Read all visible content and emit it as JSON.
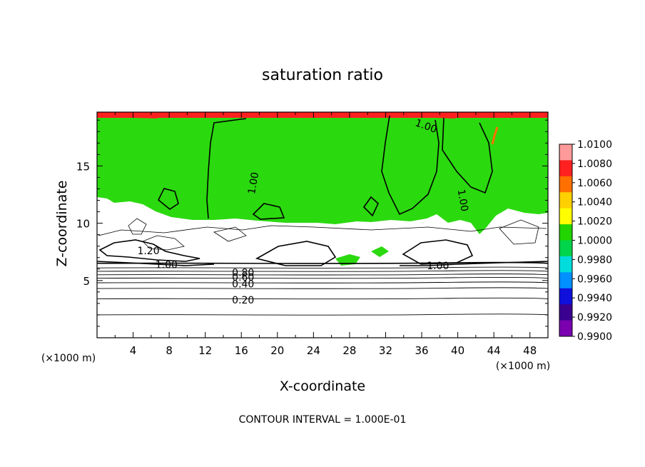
{
  "chart_data": {
    "type": "heatmap",
    "title": "saturation ratio",
    "xlabel": "X-coordinate",
    "ylabel": "Z-coordinate",
    "x_unit_left": "(×1000 m)",
    "x_unit_right": "(×1000 m)",
    "xlim": [
      0,
      50
    ],
    "ylim": [
      0,
      19.7
    ],
    "xticks": [
      4,
      8,
      12,
      16,
      20,
      24,
      28,
      32,
      36,
      40,
      44,
      48
    ],
    "xtick_labels": [
      "4",
      "8",
      "12",
      "16",
      "20",
      "24",
      "28",
      "32",
      "36",
      "40",
      "44",
      "48"
    ],
    "yticks": [
      5,
      10,
      15
    ],
    "ytick_labels": [
      "5",
      "10",
      "15"
    ],
    "colorbar": {
      "levels": [
        1.01,
        1.008,
        1.006,
        1.004,
        1.002,
        1.0,
        0.998,
        0.996,
        0.994,
        0.992,
        0.99
      ],
      "labels": [
        "1.0100",
        "1.0080",
        "1.0060",
        "1.0040",
        "1.0020",
        "1.0000",
        "0.9980",
        "0.9960",
        "0.9940",
        "0.9920",
        "0.9900"
      ],
      "colors": [
        "#ff9a9a",
        "#ff2020",
        "#ff7000",
        "#ffd000",
        "#ffff00",
        "#22d400",
        "#00d44a",
        "#00dcdc",
        "#0090ff",
        "#1010dd",
        "#3a0090",
        "#7a00b0"
      ]
    },
    "field_colors": {
      "supersaturated": "#2bd90f",
      "subsaturated": "#ffffff",
      "upper_edge": "#ff2020"
    },
    "contour_interval": 0.1,
    "contour_labels": [
      {
        "text": "1.00",
        "x": 17.3,
        "y": 13.5,
        "angle": -80
      },
      {
        "text": "1.00",
        "x": 36.5,
        "y": 18.5,
        "angle": 20
      },
      {
        "text": "1.00",
        "x": 40.6,
        "y": 12.0,
        "angle": 80
      },
      {
        "text": "1.20",
        "x": 5.7,
        "y": 7.6,
        "angle": 0
      },
      {
        "text": "1.00",
        "x": 7.7,
        "y": 6.4,
        "angle": 0
      },
      {
        "text": "1.00",
        "x": 37.8,
        "y": 6.3,
        "angle": 0
      },
      {
        "text": "0.80",
        "x": 16.2,
        "y": 5.7,
        "angle": 0
      },
      {
        "text": "0.60",
        "x": 16.2,
        "y": 5.3,
        "angle": 0
      },
      {
        "text": "0.40",
        "x": 16.2,
        "y": 4.7,
        "angle": 0
      },
      {
        "text": "0.20",
        "x": 16.2,
        "y": 3.3,
        "angle": 0
      }
    ],
    "low_level_contours": [
      {
        "level": 0.2,
        "z": 2.0
      },
      {
        "level": 0.3,
        "z": 3.4
      },
      {
        "level": 0.4,
        "z": 4.3
      },
      {
        "level": 0.5,
        "z": 4.8
      },
      {
        "level": 0.6,
        "z": 5.2
      },
      {
        "level": 0.7,
        "z": 5.5
      },
      {
        "level": 0.8,
        "z": 5.8
      },
      {
        "level": 0.9,
        "z": 6.1
      },
      {
        "level": 1.0,
        "z": 6.5
      }
    ],
    "footer": "CONTOUR INTERVAL = 1.000E-01"
  }
}
